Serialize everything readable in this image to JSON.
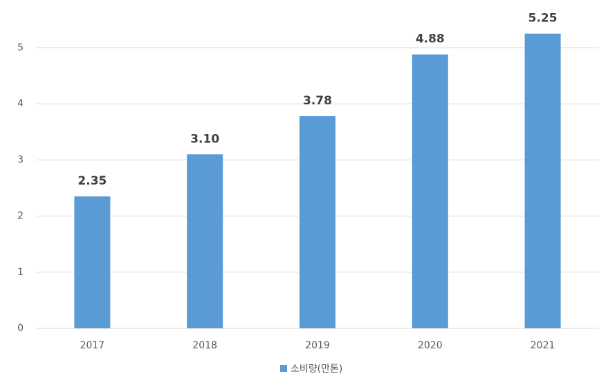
{
  "chart_data": {
    "type": "bar",
    "categories": [
      "2017",
      "2018",
      "2019",
      "2020",
      "2021"
    ],
    "series": [
      {
        "name": "소비량(만톤)",
        "color": "#5b9bd5",
        "values": [
          2.35,
          3.1,
          3.78,
          4.88,
          5.25
        ],
        "value_labels": [
          "2.35",
          "3.10",
          "3.78",
          "4.88",
          "5.25"
        ]
      }
    ],
    "ylim": [
      0,
      5.5
    ],
    "yticks": [
      0,
      1,
      2,
      3,
      4,
      5
    ],
    "grid": true,
    "legend": "bottom"
  }
}
